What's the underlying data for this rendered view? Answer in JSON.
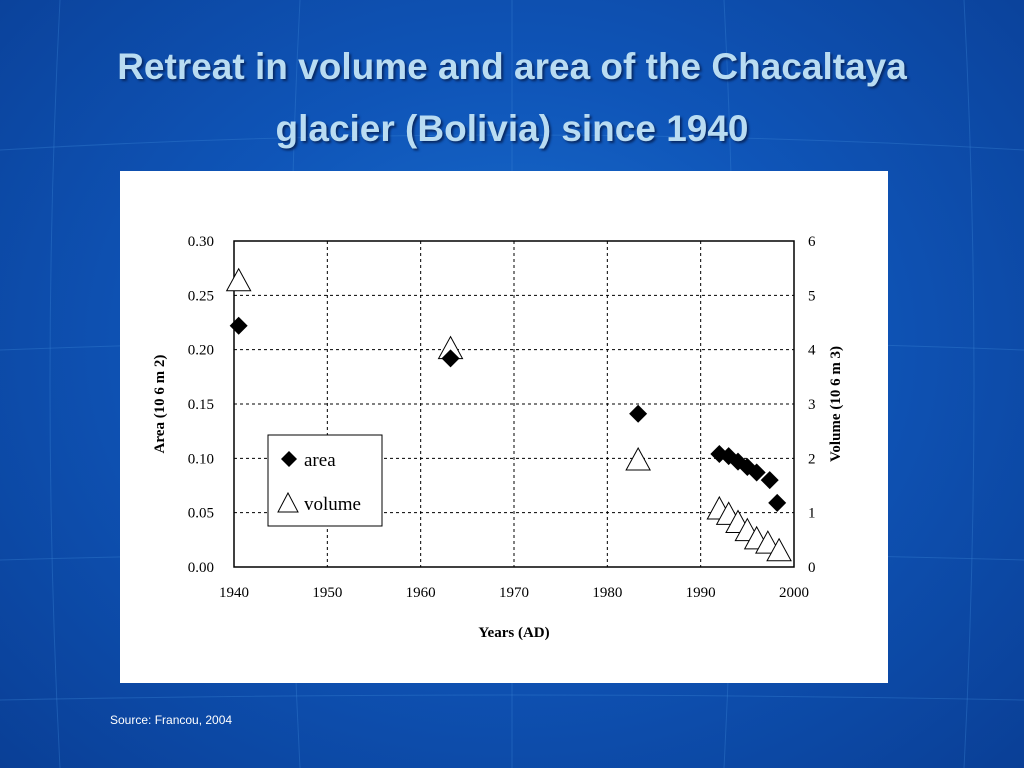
{
  "slide": {
    "title_line1": "Retreat in volume and area of the Chacaltaya",
    "title_line2": "glacier (Bolivia) since 1940",
    "source": "Source: Francou, 2004"
  },
  "colors": {
    "background": "#0f55b8",
    "title": "#b9dcf2",
    "chart_panel": "#ffffff"
  },
  "chart_data": {
    "type": "scatter",
    "xlabel": "Years (AD)",
    "ylabel_left": "Area (10 6 m 2)",
    "ylabel_right": "Volume (10 6 m 3)",
    "xlim": [
      1940,
      2000
    ],
    "ylim_left": [
      0,
      0.3
    ],
    "ylim_right": [
      0,
      6
    ],
    "x_ticks": [
      "1940",
      "1950",
      "1960",
      "1970",
      "1980",
      "1990",
      "2000"
    ],
    "y_ticks_left": [
      "0.00",
      "0.05",
      "0.10",
      "0.15",
      "0.20",
      "0.25",
      "0.30"
    ],
    "y_ticks_right": [
      "0",
      "1",
      "2",
      "3",
      "4",
      "5",
      "6"
    ],
    "grid": true,
    "legend_position": "lower-left",
    "series": [
      {
        "name": "area",
        "marker": "filled-diamond",
        "axis": "left",
        "x": [
          1940.5,
          1963.2,
          1983.3,
          1992,
          1993,
          1994,
          1995,
          1996,
          1997.4,
          1998.2
        ],
        "y": [
          0.222,
          0.192,
          0.141,
          0.104,
          0.102,
          0.097,
          0.092,
          0.087,
          0.08,
          0.059
        ]
      },
      {
        "name": "volume",
        "marker": "open-triangle",
        "axis": "right",
        "x": [
          1940.5,
          1963.2,
          1983.3,
          1992,
          1993,
          1994,
          1995,
          1996,
          1997.2,
          1998.4
        ],
        "y": [
          5.25,
          4.0,
          1.95,
          1.05,
          0.95,
          0.8,
          0.65,
          0.5,
          0.42,
          0.28
        ]
      }
    ]
  }
}
